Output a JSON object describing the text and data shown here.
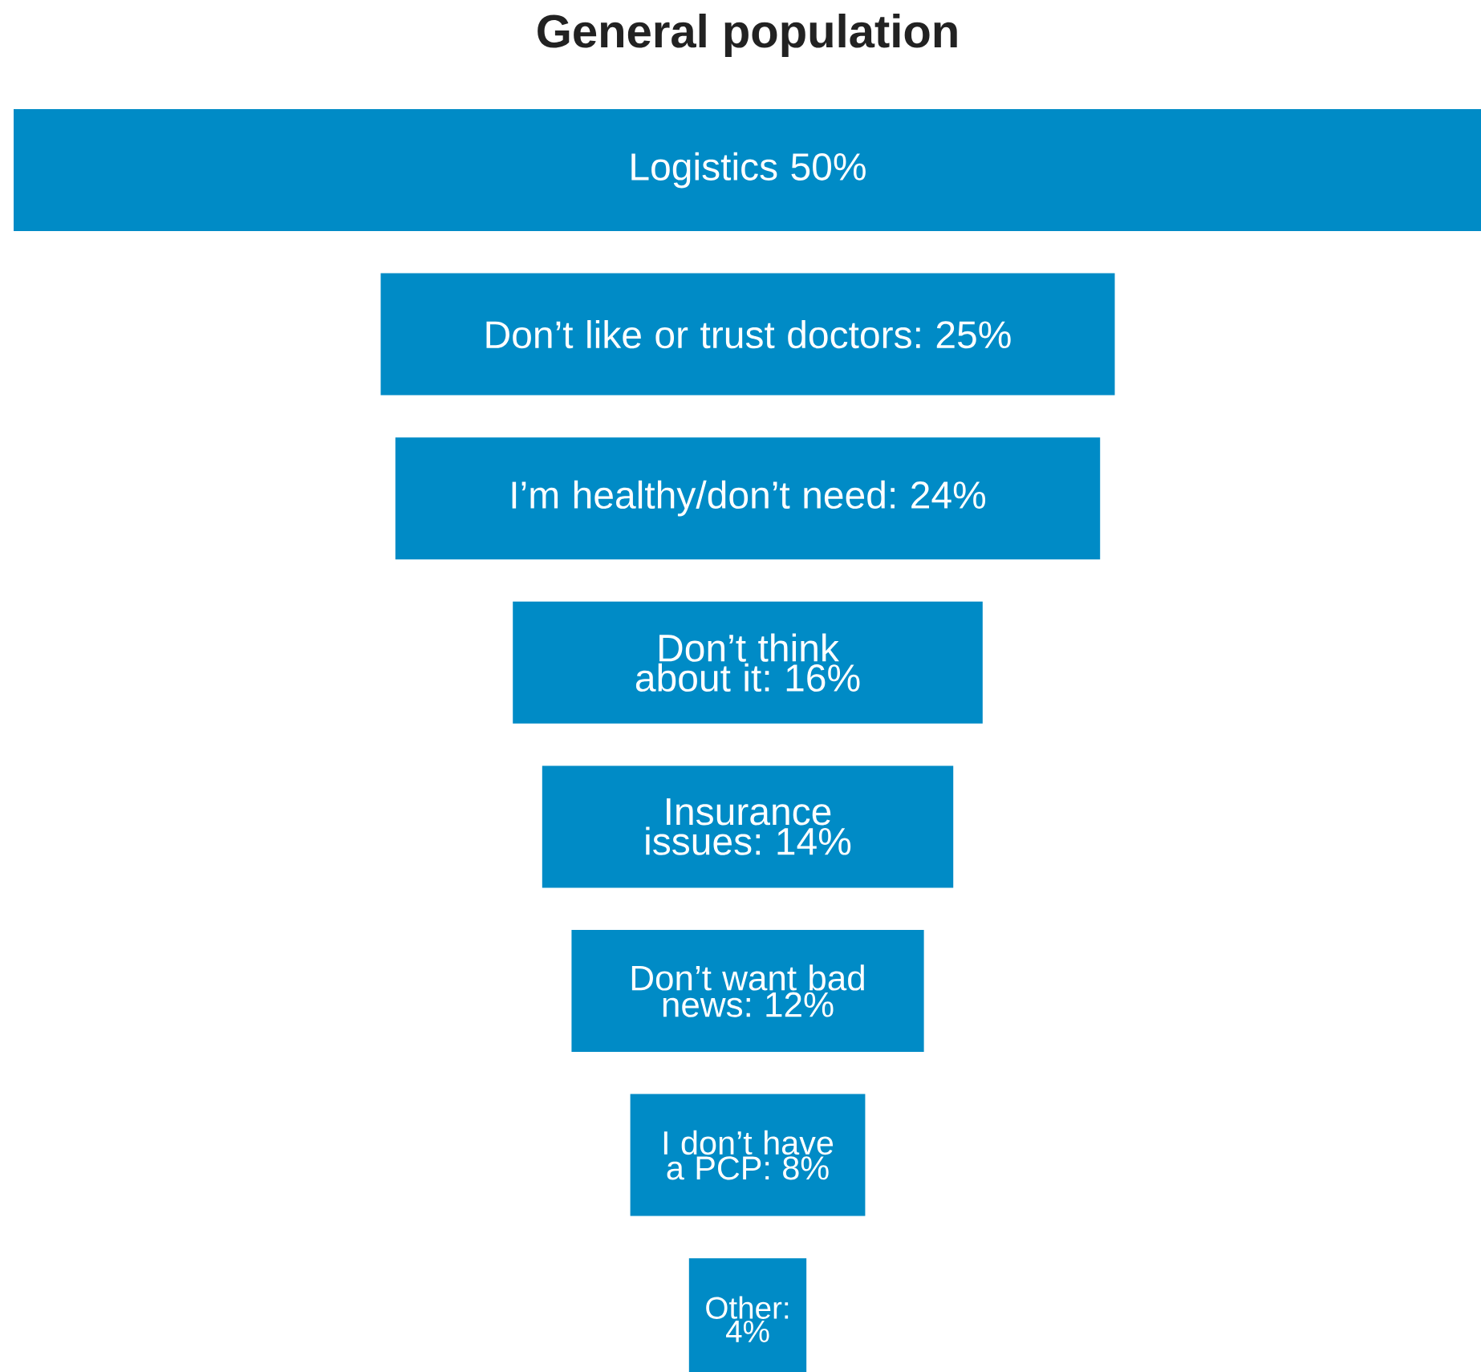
{
  "chart_data": {
    "type": "other",
    "title": "General population",
    "categories": [
      "Logistics",
      "Don’t like or trust doctors",
      "I’m healthy/don’t need",
      "Don’t think about it",
      "Insurance issues",
      "Don’t want bad news",
      "I don’t have a PCP",
      "Other"
    ],
    "values": [
      50,
      25,
      24,
      16,
      14,
      12,
      8,
      4
    ],
    "value_labels": [
      " 50%",
      ": 25%",
      ": 24%",
      ": 16%",
      ": 14%",
      ": 12%",
      ": 8%",
      ": 4%"
    ],
    "color": "#008bc6"
  }
}
